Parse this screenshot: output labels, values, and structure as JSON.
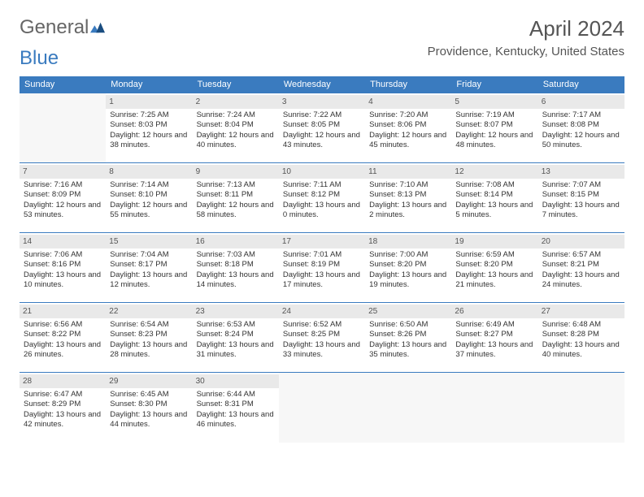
{
  "logo": {
    "part1": "General",
    "part2": "Blue"
  },
  "title": "April 2024",
  "location": "Providence, Kentucky, United States",
  "colors": {
    "header_bg": "#3a7bbf",
    "header_text": "#ffffff",
    "border": "#3a7bbf",
    "daynum_bg": "#e9e9e9",
    "text": "#333333",
    "logo_accent": "#3a7bbf"
  },
  "weekdays": [
    "Sunday",
    "Monday",
    "Tuesday",
    "Wednesday",
    "Thursday",
    "Friday",
    "Saturday"
  ],
  "weeks": [
    [
      {
        "n": "",
        "sr": "",
        "ss": "",
        "dl": ""
      },
      {
        "n": "1",
        "sr": "Sunrise: 7:25 AM",
        "ss": "Sunset: 8:03 PM",
        "dl": "Daylight: 12 hours and 38 minutes."
      },
      {
        "n": "2",
        "sr": "Sunrise: 7:24 AM",
        "ss": "Sunset: 8:04 PM",
        "dl": "Daylight: 12 hours and 40 minutes."
      },
      {
        "n": "3",
        "sr": "Sunrise: 7:22 AM",
        "ss": "Sunset: 8:05 PM",
        "dl": "Daylight: 12 hours and 43 minutes."
      },
      {
        "n": "4",
        "sr": "Sunrise: 7:20 AM",
        "ss": "Sunset: 8:06 PM",
        "dl": "Daylight: 12 hours and 45 minutes."
      },
      {
        "n": "5",
        "sr": "Sunrise: 7:19 AM",
        "ss": "Sunset: 8:07 PM",
        "dl": "Daylight: 12 hours and 48 minutes."
      },
      {
        "n": "6",
        "sr": "Sunrise: 7:17 AM",
        "ss": "Sunset: 8:08 PM",
        "dl": "Daylight: 12 hours and 50 minutes."
      }
    ],
    [
      {
        "n": "7",
        "sr": "Sunrise: 7:16 AM",
        "ss": "Sunset: 8:09 PM",
        "dl": "Daylight: 12 hours and 53 minutes."
      },
      {
        "n": "8",
        "sr": "Sunrise: 7:14 AM",
        "ss": "Sunset: 8:10 PM",
        "dl": "Daylight: 12 hours and 55 minutes."
      },
      {
        "n": "9",
        "sr": "Sunrise: 7:13 AM",
        "ss": "Sunset: 8:11 PM",
        "dl": "Daylight: 12 hours and 58 minutes."
      },
      {
        "n": "10",
        "sr": "Sunrise: 7:11 AM",
        "ss": "Sunset: 8:12 PM",
        "dl": "Daylight: 13 hours and 0 minutes."
      },
      {
        "n": "11",
        "sr": "Sunrise: 7:10 AM",
        "ss": "Sunset: 8:13 PM",
        "dl": "Daylight: 13 hours and 2 minutes."
      },
      {
        "n": "12",
        "sr": "Sunrise: 7:08 AM",
        "ss": "Sunset: 8:14 PM",
        "dl": "Daylight: 13 hours and 5 minutes."
      },
      {
        "n": "13",
        "sr": "Sunrise: 7:07 AM",
        "ss": "Sunset: 8:15 PM",
        "dl": "Daylight: 13 hours and 7 minutes."
      }
    ],
    [
      {
        "n": "14",
        "sr": "Sunrise: 7:06 AM",
        "ss": "Sunset: 8:16 PM",
        "dl": "Daylight: 13 hours and 10 minutes."
      },
      {
        "n": "15",
        "sr": "Sunrise: 7:04 AM",
        "ss": "Sunset: 8:17 PM",
        "dl": "Daylight: 13 hours and 12 minutes."
      },
      {
        "n": "16",
        "sr": "Sunrise: 7:03 AM",
        "ss": "Sunset: 8:18 PM",
        "dl": "Daylight: 13 hours and 14 minutes."
      },
      {
        "n": "17",
        "sr": "Sunrise: 7:01 AM",
        "ss": "Sunset: 8:19 PM",
        "dl": "Daylight: 13 hours and 17 minutes."
      },
      {
        "n": "18",
        "sr": "Sunrise: 7:00 AM",
        "ss": "Sunset: 8:20 PM",
        "dl": "Daylight: 13 hours and 19 minutes."
      },
      {
        "n": "19",
        "sr": "Sunrise: 6:59 AM",
        "ss": "Sunset: 8:20 PM",
        "dl": "Daylight: 13 hours and 21 minutes."
      },
      {
        "n": "20",
        "sr": "Sunrise: 6:57 AM",
        "ss": "Sunset: 8:21 PM",
        "dl": "Daylight: 13 hours and 24 minutes."
      }
    ],
    [
      {
        "n": "21",
        "sr": "Sunrise: 6:56 AM",
        "ss": "Sunset: 8:22 PM",
        "dl": "Daylight: 13 hours and 26 minutes."
      },
      {
        "n": "22",
        "sr": "Sunrise: 6:54 AM",
        "ss": "Sunset: 8:23 PM",
        "dl": "Daylight: 13 hours and 28 minutes."
      },
      {
        "n": "23",
        "sr": "Sunrise: 6:53 AM",
        "ss": "Sunset: 8:24 PM",
        "dl": "Daylight: 13 hours and 31 minutes."
      },
      {
        "n": "24",
        "sr": "Sunrise: 6:52 AM",
        "ss": "Sunset: 8:25 PM",
        "dl": "Daylight: 13 hours and 33 minutes."
      },
      {
        "n": "25",
        "sr": "Sunrise: 6:50 AM",
        "ss": "Sunset: 8:26 PM",
        "dl": "Daylight: 13 hours and 35 minutes."
      },
      {
        "n": "26",
        "sr": "Sunrise: 6:49 AM",
        "ss": "Sunset: 8:27 PM",
        "dl": "Daylight: 13 hours and 37 minutes."
      },
      {
        "n": "27",
        "sr": "Sunrise: 6:48 AM",
        "ss": "Sunset: 8:28 PM",
        "dl": "Daylight: 13 hours and 40 minutes."
      }
    ],
    [
      {
        "n": "28",
        "sr": "Sunrise: 6:47 AM",
        "ss": "Sunset: 8:29 PM",
        "dl": "Daylight: 13 hours and 42 minutes."
      },
      {
        "n": "29",
        "sr": "Sunrise: 6:45 AM",
        "ss": "Sunset: 8:30 PM",
        "dl": "Daylight: 13 hours and 44 minutes."
      },
      {
        "n": "30",
        "sr": "Sunrise: 6:44 AM",
        "ss": "Sunset: 8:31 PM",
        "dl": "Daylight: 13 hours and 46 minutes."
      },
      {
        "n": "",
        "sr": "",
        "ss": "",
        "dl": ""
      },
      {
        "n": "",
        "sr": "",
        "ss": "",
        "dl": ""
      },
      {
        "n": "",
        "sr": "",
        "ss": "",
        "dl": ""
      },
      {
        "n": "",
        "sr": "",
        "ss": "",
        "dl": ""
      }
    ]
  ]
}
